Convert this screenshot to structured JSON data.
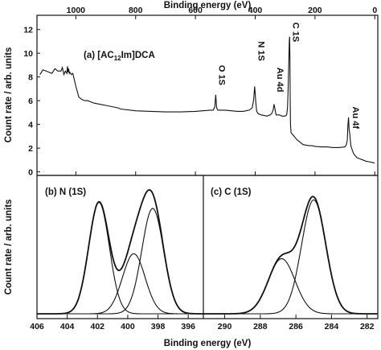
{
  "chart_data": [
    {
      "id": "a",
      "type": "line",
      "title": "(a) [AC",
      "title_sub": "12",
      "title_suffix": "Im]DCA",
      "xlabel": "Binding energy (eV)",
      "ylabel": "Count rate / arb. units",
      "xlim": [
        1130,
        -10
      ],
      "ylim": [
        -0.3,
        13.2
      ],
      "x_ticks": [
        1000,
        800,
        600,
        400,
        200,
        0
      ],
      "x_tick_labels": [
        "1000",
        "800",
        "600",
        "400",
        "200",
        "0"
      ],
      "y_ticks": [
        0,
        2,
        4,
        6,
        8,
        10,
        12
      ],
      "y_tick_labels": [
        "0",
        "2",
        "4",
        "6",
        "8",
        "10",
        "12"
      ],
      "annotations": [
        {
          "text": "O 1S",
          "x": 532,
          "y": 9.0
        },
        {
          "text": "N 1S",
          "x": 400,
          "y": 11.0
        },
        {
          "text": "Au 4d",
          "x": 337,
          "y": 8.8
        },
        {
          "text": "C 1S",
          "x": 285,
          "y": 12.6
        },
        {
          "text": "Au 4f",
          "x": 84,
          "y": 5.5
        }
      ],
      "series": [
        {
          "x": [
            1120,
            1110,
            1100,
            1090,
            1080,
            1070,
            1060,
            1050,
            1045,
            1040,
            1035,
            1030,
            1028,
            1026,
            1024,
            1022,
            1020,
            1015,
            1010,
            1000,
            990,
            980,
            970,
            960,
            950,
            940,
            920,
            900,
            880,
            860,
            850,
            800,
            750,
            700,
            650,
            600,
            550,
            540,
            535,
            532,
            529,
            525,
            520,
            500,
            480,
            460,
            440,
            420,
            410,
            405,
            402,
            400,
            398,
            395,
            390,
            380,
            370,
            360,
            350,
            345,
            340,
            337,
            334,
            330,
            320,
            310,
            300,
            295,
            292,
            290,
            288,
            286,
            285,
            284,
            283,
            282,
            280,
            270,
            260,
            250,
            240,
            230,
            220,
            210,
            200,
            180,
            160,
            140,
            120,
            100,
            95,
            92,
            90,
            88,
            86,
            84,
            82,
            80,
            75,
            70,
            60,
            50,
            40,
            30,
            20,
            10,
            0
          ],
          "y": [
            8.2,
            8.6,
            8.5,
            8.4,
            8.3,
            8.7,
            8.5,
            8.5,
            8.8,
            8.2,
            8.5,
            8.3,
            8.9,
            8.4,
            8.7,
            8.3,
            8.4,
            8.2,
            8.3,
            7.2,
            6.3,
            6.1,
            6.0,
            6.0,
            5.9,
            5.8,
            5.7,
            5.6,
            5.5,
            5.4,
            5.3,
            5.15,
            5.1,
            5.05,
            5.05,
            5.1,
            5.2,
            5.2,
            5.5,
            6.5,
            5.4,
            5.2,
            5.2,
            5.2,
            5.15,
            5.1,
            5.1,
            5.2,
            5.4,
            6.1,
            7.2,
            6.6,
            5.8,
            5.1,
            4.9,
            4.8,
            4.75,
            4.7,
            4.8,
            4.9,
            5.2,
            5.7,
            5.3,
            4.8,
            4.8,
            4.7,
            4.7,
            4.8,
            5.4,
            6.8,
            9.0,
            11.0,
            11.4,
            9.5,
            6.5,
            4.0,
            3.3,
            3.0,
            2.7,
            2.5,
            2.3,
            2.25,
            2.2,
            2.2,
            2.15,
            2.1,
            2.1,
            2.05,
            2.05,
            2.1,
            2.3,
            2.7,
            3.9,
            4.6,
            3.6,
            3.3,
            2.7,
            2.2,
            1.8,
            1.5,
            1.2,
            1.1,
            1.0,
            0.9,
            0.85,
            0.8,
            0.75
          ]
        }
      ]
    },
    {
      "id": "b",
      "type": "line",
      "title": "(b) N (1S)",
      "xlabel": "Binding energy (eV)",
      "ylabel": "Count rate / arb. units",
      "xlim": [
        406,
        395
      ],
      "ylim": [
        0,
        1.13
      ],
      "x_ticks": [
        406,
        404,
        402,
        400,
        398,
        396
      ],
      "x_tick_labels": [
        "406",
        "404",
        "402",
        "400",
        "398",
        "396"
      ],
      "series": [
        {
          "role": "envelope",
          "peaks": [
            {
              "center": 401.9,
              "height": 0.91,
              "sigma": 0.68
            },
            {
              "center": 399.6,
              "height": 0.49,
              "sigma": 0.75
            },
            {
              "center": 398.35,
              "height": 0.86,
              "sigma": 0.72
            }
          ]
        },
        {
          "role": "component",
          "peaks": [
            {
              "center": 401.9,
              "height": 0.91,
              "sigma": 0.68
            }
          ]
        },
        {
          "role": "component",
          "peaks": [
            {
              "center": 399.6,
              "height": 0.49,
              "sigma": 0.75
            }
          ]
        },
        {
          "role": "component",
          "peaks": [
            {
              "center": 398.35,
              "height": 0.86,
              "sigma": 0.72
            }
          ]
        }
      ]
    },
    {
      "id": "c",
      "type": "line",
      "title": "(c) C (1S)",
      "xlabel": "Binding energy (eV)",
      "xlim": [
        291.2,
        281.4
      ],
      "ylim": [
        0,
        1.13
      ],
      "x_ticks": [
        290,
        288,
        286,
        284,
        282
      ],
      "x_tick_labels": [
        "290",
        "288",
        "286",
        "284",
        "282"
      ],
      "series": [
        {
          "role": "envelope",
          "peaks": [
            {
              "center": 286.8,
              "height": 0.45,
              "sigma": 0.75
            },
            {
              "center": 285.0,
              "height": 0.93,
              "sigma": 0.68
            }
          ]
        },
        {
          "role": "component",
          "peaks": [
            {
              "center": 286.8,
              "height": 0.45,
              "sigma": 0.75
            }
          ]
        },
        {
          "role": "component",
          "peaks": [
            {
              "center": 285.0,
              "height": 0.93,
              "sigma": 0.68
            }
          ]
        }
      ]
    }
  ],
  "top_axis_label": "Binding energy (eV)",
  "bottom_axis_label": "Binding energy (eV)",
  "lower_ylabel": "Count rate / arb. units"
}
